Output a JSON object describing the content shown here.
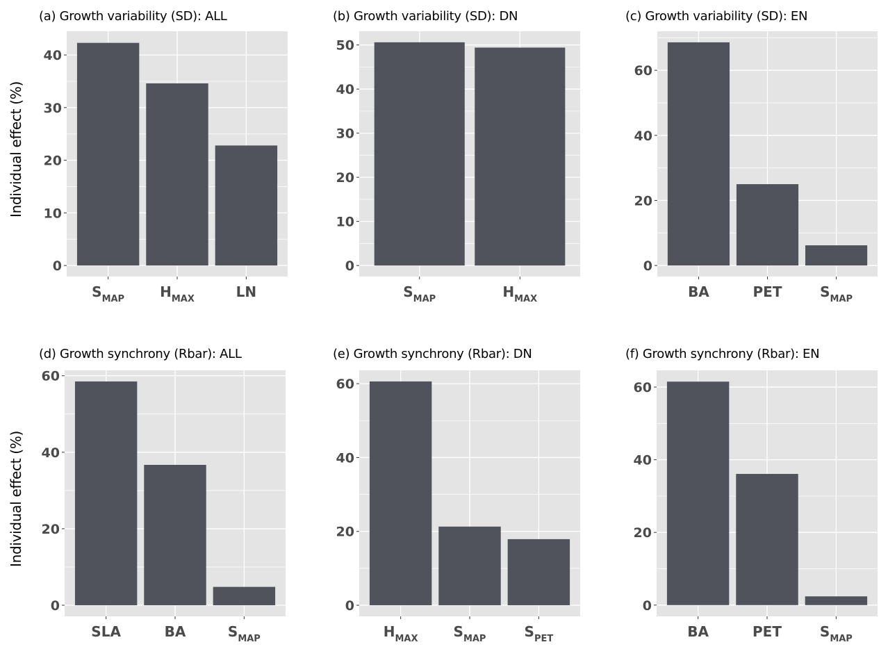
{
  "figure": {
    "y_axis_label": "Individual effect (%)"
  },
  "colors": {
    "bar": "#50535b",
    "panel_background": "#e4e4e4",
    "grid": "#ffffff",
    "tick_text": "#4a4a4a"
  },
  "chart_data": [
    {
      "type": "bar",
      "title": "(a) Growth variability (SD): ALL",
      "categories": [
        {
          "main": "S",
          "sub": "MAP"
        },
        {
          "main": "H",
          "sub": "MAX"
        },
        {
          "main": "LN",
          "sub": ""
        }
      ],
      "values": [
        42.3,
        34.6,
        22.8
      ],
      "ylim": [
        -2.1,
        44.5
      ],
      "yticks": [
        0,
        10,
        20,
        30,
        40
      ],
      "ylabel": "Individual effect (%)",
      "grid": true
    },
    {
      "type": "bar",
      "title": "(b) Growth variability (SD): DN",
      "categories": [
        {
          "main": "S",
          "sub": "MAP"
        },
        {
          "main": "H",
          "sub": "MAX"
        }
      ],
      "values": [
        50.6,
        49.4
      ],
      "ylim": [
        -2.5,
        53.1
      ],
      "yticks": [
        0,
        10,
        20,
        30,
        40,
        50
      ],
      "ylabel": "",
      "grid": true
    },
    {
      "type": "bar",
      "title": "(c) Growth variability (SD): EN",
      "categories": [
        {
          "main": "BA",
          "sub": ""
        },
        {
          "main": "PET",
          "sub": ""
        },
        {
          "main": "S",
          "sub": "MAP"
        }
      ],
      "values": [
        68.6,
        25.0,
        6.2
      ],
      "ylim": [
        -3.4,
        72.0
      ],
      "yticks": [
        0,
        20,
        40,
        60
      ],
      "ylabel": "",
      "grid": true
    },
    {
      "type": "bar",
      "title": "(d) Growth synchrony (Rbar): ALL",
      "categories": [
        {
          "main": "SLA",
          "sub": ""
        },
        {
          "main": "BA",
          "sub": ""
        },
        {
          "main": "S",
          "sub": "MAP"
        }
      ],
      "values": [
        58.5,
        36.7,
        4.8
      ],
      "ylim": [
        -2.9,
        61.4
      ],
      "yticks": [
        0,
        20,
        40,
        60
      ],
      "ylabel": "Individual effect (%)",
      "grid": true
    },
    {
      "type": "bar",
      "title": "(e) Growth synchrony (Rbar): DN",
      "categories": [
        {
          "main": "H",
          "sub": "MAX"
        },
        {
          "main": "S",
          "sub": "MAP"
        },
        {
          "main": "S",
          "sub": "PET"
        }
      ],
      "values": [
        60.6,
        21.3,
        17.9
      ],
      "ylim": [
        -3.0,
        63.6
      ],
      "yticks": [
        0,
        20,
        40,
        60
      ],
      "ylabel": "",
      "grid": true
    },
    {
      "type": "bar",
      "title": "(f) Growth synchrony (Rbar): EN",
      "categories": [
        {
          "main": "BA",
          "sub": ""
        },
        {
          "main": "PET",
          "sub": ""
        },
        {
          "main": "S",
          "sub": "MAP"
        }
      ],
      "values": [
        61.5,
        36.1,
        2.4
      ],
      "ylim": [
        -3.1,
        64.6
      ],
      "yticks": [
        0,
        20,
        40,
        60
      ],
      "ylabel": "",
      "grid": true
    }
  ]
}
